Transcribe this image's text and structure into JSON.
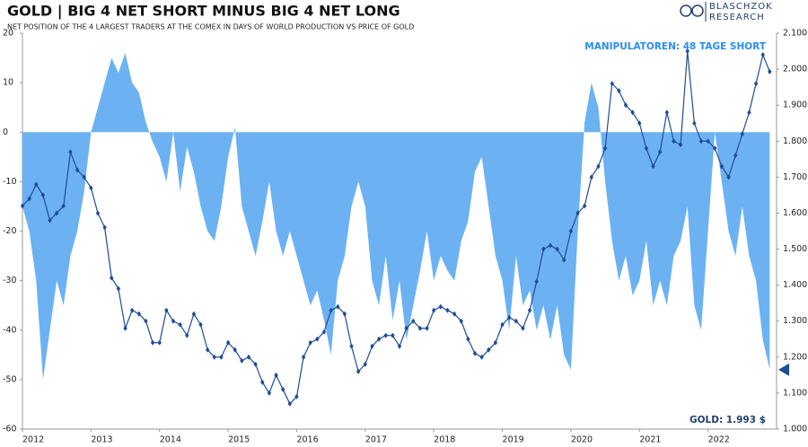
{
  "header": {
    "logo": [
      "BLASCHZOK",
      "RESEARCH"
    ]
  },
  "chart_data": {
    "type": "area-line",
    "title": "GOLD | BIG 4 NET SHORT MINUS BIG 4 NET LONG",
    "subtitle": "NET POSITION OF THE 4 LARGEST TRADERS AT THE COMEX IN DAYS OF WORLD PRODUCTION VS PRICE OF GOLD",
    "annotations": [
      "MANIPULATOREN: 48 TAGE SHORT",
      "GOLD: 1.993 $"
    ],
    "x": [
      2012,
      2012.1,
      2012.2,
      2012.3,
      2012.4,
      2012.5,
      2012.6,
      2012.7,
      2012.8,
      2012.9,
      2013,
      2013.1,
      2013.2,
      2013.3,
      2013.4,
      2013.5,
      2013.6,
      2013.7,
      2013.8,
      2013.9,
      2014,
      2014.1,
      2014.2,
      2014.3,
      2014.4,
      2014.5,
      2014.6,
      2014.7,
      2014.8,
      2014.9,
      2015,
      2015.1,
      2015.2,
      2015.3,
      2015.4,
      2015.5,
      2015.6,
      2015.7,
      2015.8,
      2015.9,
      2016,
      2016.1,
      2016.2,
      2016.3,
      2016.4,
      2016.5,
      2016.6,
      2016.7,
      2016.8,
      2016.9,
      2017,
      2017.1,
      2017.2,
      2017.3,
      2017.4,
      2017.5,
      2017.6,
      2017.7,
      2017.8,
      2017.9,
      2018,
      2018.1,
      2018.2,
      2018.3,
      2018.4,
      2018.5,
      2018.6,
      2018.7,
      2018.8,
      2018.9,
      2019,
      2019.1,
      2019.2,
      2019.3,
      2019.4,
      2019.5,
      2019.6,
      2019.7,
      2019.8,
      2019.9,
      2020,
      2020.1,
      2020.2,
      2020.3,
      2020.4,
      2020.5,
      2020.6,
      2020.7,
      2020.8,
      2020.9,
      2021,
      2021.1,
      2021.2,
      2021.3,
      2021.4,
      2021.5,
      2021.6,
      2021.7,
      2021.8,
      2021.9,
      2022,
      2022.1,
      2022.2,
      2022.3,
      2022.4,
      2022.5,
      2022.6,
      2022.7,
      2022.8,
      2022.9
    ],
    "series": [
      {
        "style": "area",
        "color": "#6cb2f2",
        "values": [
          -15,
          -20,
          -30,
          -50,
          -40,
          -30,
          -35,
          -25,
          -20,
          -12,
          0,
          5,
          10,
          15,
          12,
          16,
          10,
          8,
          2,
          -2,
          -5,
          -10,
          0,
          -12,
          -3,
          -8,
          -15,
          -20,
          -22,
          -15,
          -5,
          1,
          -15,
          -20,
          -25,
          -18,
          -10,
          -20,
          -25,
          -20,
          -25,
          -30,
          -35,
          -32,
          -38,
          -45,
          -30,
          -25,
          -15,
          -10,
          -15,
          -30,
          -35,
          -25,
          -38,
          -30,
          -42,
          -35,
          -28,
          -20,
          -30,
          -25,
          -28,
          -30,
          -22,
          -18,
          -8,
          -5,
          -15,
          -25,
          -30,
          -40,
          -25,
          -35,
          -32,
          -40,
          -35,
          -42,
          -35,
          -45,
          -48,
          -20,
          2,
          10,
          5,
          -10,
          -22,
          -30,
          -25,
          -33,
          -30,
          -22,
          -35,
          -30,
          -35,
          -25,
          -22,
          -15,
          -35,
          -40,
          -20,
          0,
          -10,
          -20,
          -25,
          -15,
          -25,
          -30,
          -42,
          -48
        ]
      },
      {
        "style": "line",
        "axis": "y2",
        "color": "#1f4c96",
        "marker": "diamond",
        "values": [
          1620,
          1640,
          1680,
          1650,
          1580,
          1600,
          1620,
          1770,
          1720,
          1700,
          1670,
          1600,
          1560,
          1420,
          1390,
          1280,
          1330,
          1320,
          1300,
          1240,
          1240,
          1330,
          1300,
          1290,
          1260,
          1320,
          1290,
          1220,
          1200,
          1200,
          1240,
          1220,
          1190,
          1200,
          1180,
          1130,
          1100,
          1150,
          1110,
          1070,
          1090,
          1200,
          1240,
          1250,
          1270,
          1330,
          1340,
          1320,
          1230,
          1160,
          1180,
          1230,
          1250,
          1260,
          1260,
          1230,
          1280,
          1300,
          1280,
          1280,
          1330,
          1340,
          1330,
          1320,
          1300,
          1250,
          1210,
          1200,
          1220,
          1240,
          1290,
          1310,
          1300,
          1280,
          1330,
          1410,
          1500,
          1510,
          1500,
          1470,
          1550,
          1600,
          1620,
          1700,
          1730,
          1780,
          1960,
          1940,
          1900,
          1880,
          1850,
          1780,
          1730,
          1770,
          1880,
          1800,
          1790,
          2050,
          1850,
          1800,
          1800,
          1780,
          1730,
          1700,
          1760,
          1820,
          1880,
          1960,
          2040,
          1993
        ]
      }
    ],
    "xlim": [
      2012,
      2023
    ],
    "xticks": [
      2012,
      2013,
      2014,
      2015,
      2016,
      2017,
      2018,
      2019,
      2020,
      2021,
      2022
    ],
    "ylim": [
      -60,
      20
    ],
    "yticks": [
      -60,
      -50,
      -40,
      -30,
      -20,
      -10,
      0,
      10,
      20
    ],
    "y2lim": [
      1000,
      2100
    ],
    "y2ticks": [
      {
        "value": 1000,
        "label": "1.000"
      },
      {
        "value": 1100,
        "label": "1.100"
      },
      {
        "value": 1200,
        "label": "1.200"
      },
      {
        "value": 1300,
        "label": "1.300"
      },
      {
        "value": 1400,
        "label": "1.400"
      },
      {
        "value": 1500,
        "label": "1.500"
      },
      {
        "value": 1600,
        "label": "1.600"
      },
      {
        "value": 1700,
        "label": "1.700"
      },
      {
        "value": 1800,
        "label": "1.800"
      },
      {
        "value": 1900,
        "label": "1.900"
      },
      {
        "value": 2000,
        "label": "2.000"
      },
      {
        "value": 2100,
        "label": "2.100"
      }
    ],
    "grid": false
  }
}
